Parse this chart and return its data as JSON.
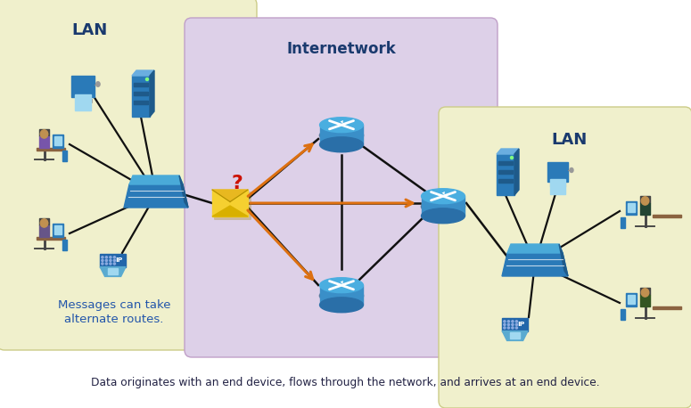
{
  "bg_color": "#ffffff",
  "lan_left_bg": "#f0f0cc",
  "lan_right_bg": "#f0f0cc",
  "internet_bg": "#ddd0e8",
  "lan_left_label": "LAN",
  "lan_right_label": "LAN",
  "internet_label": "Internetwork",
  "caption": "Data originates with an end device, flows through the network, and arrives at an end device.",
  "note_line1": "Messages can take",
  "note_line2": "alternate routes.",
  "note_color": "#2255aa",
  "label_color": "#1a3a6e",
  "line_color": "#111111",
  "arrow_color": "#dd7010",
  "router_outer": "#2a6fa8",
  "router_inner": "#3a8fc8",
  "router_top": "#4aaee0",
  "switch_dark": "#1e5a8a",
  "switch_mid": "#2a7ab8",
  "switch_light": "#4aaad8",
  "env_body": "#f5d030",
  "env_shadow": "#c8a010",
  "env_flap": "#e8b820",
  "tower_dark": "#1e5a8a",
  "tower_mid": "#2a7ab8",
  "tower_light": "#6aaee0",
  "comp_dark": "#1e5a8a",
  "comp_mid": "#2a7ab8",
  "comp_screen": "#a0d8f0",
  "phone_dark": "#2266aa",
  "phone_light": "#5aaad0"
}
